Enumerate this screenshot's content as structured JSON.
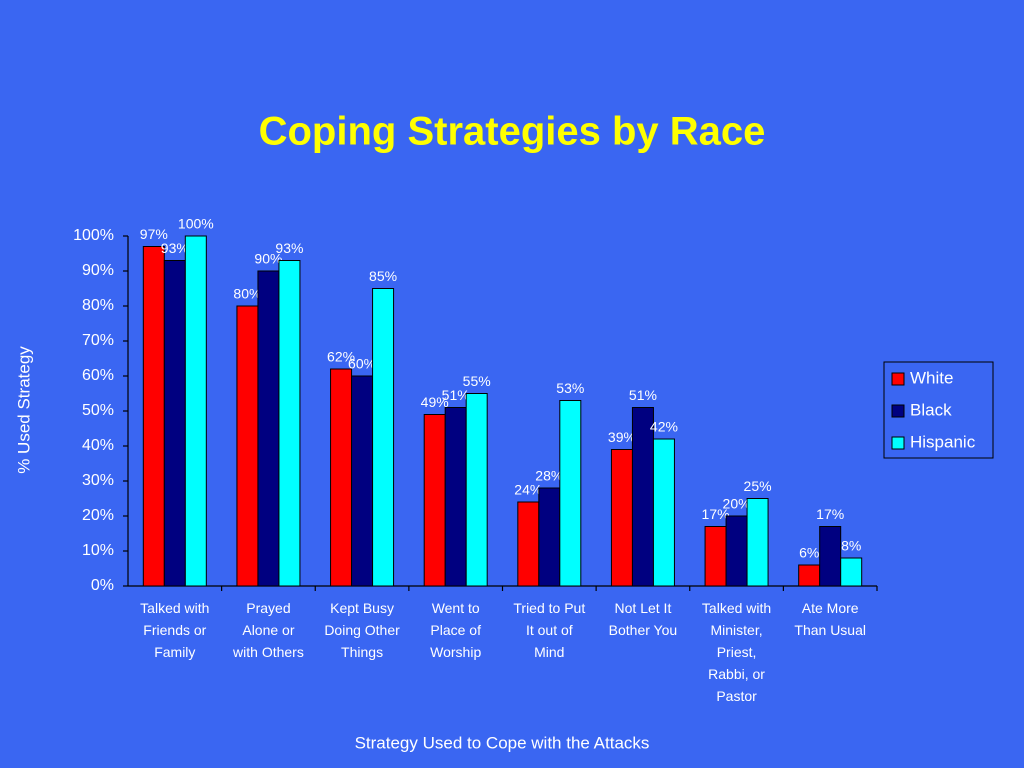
{
  "chart_data": {
    "type": "bar",
    "title": "Coping Strategies by Race",
    "x_label": "Strategy Used to Cope with the Attacks",
    "y_label": "% Used Strategy",
    "categories": [
      "Talked with\nFriends or\nFamily",
      "Prayed\nAlone or\nwith Others",
      "Kept Busy\nDoing Other\nThings",
      "Went to\nPlace of\nWorship",
      "Tried to Put\nIt out of\nMind",
      "Not Let It\nBother You",
      "Talked with\nMinister,\nPriest,\nRabbi, or\nPastor",
      "Ate More\nThan Usual"
    ],
    "series": [
      {
        "name": "White",
        "color": "#ff0000",
        "values": [
          97,
          80,
          62,
          49,
          24,
          39,
          17,
          6
        ],
        "value_labels": [
          "97%",
          "80%",
          "62%",
          "49%",
          "24%",
          "39%",
          "17%",
          "6%"
        ]
      },
      {
        "name": "Black",
        "color": "#000080",
        "values": [
          93,
          90,
          60,
          51,
          28,
          51,
          20,
          17
        ],
        "value_labels": [
          "93%",
          "90%",
          "60%",
          "51%",
          "28%",
          "51%",
          "20%",
          "17%"
        ]
      },
      {
        "name": "Hispanic",
        "color": "#00ffff",
        "values": [
          100,
          93,
          85,
          55,
          53,
          42,
          25,
          8
        ],
        "value_labels": [
          "100%",
          "93%",
          "85%",
          "55%",
          "53%",
          "42%",
          "25%",
          "8%"
        ]
      }
    ],
    "ylim": [
      0,
      100
    ],
    "yticks": [
      {
        "value": 0,
        "label": "0%"
      },
      {
        "value": 10,
        "label": "10%"
      },
      {
        "value": 20,
        "label": "20%"
      },
      {
        "value": 30,
        "label": "30%"
      },
      {
        "value": 40,
        "label": "40%"
      },
      {
        "value": 50,
        "label": "50%"
      },
      {
        "value": 60,
        "label": "60%"
      },
      {
        "value": 70,
        "label": "70%"
      },
      {
        "value": 80,
        "label": "80%"
      },
      {
        "value": 90,
        "label": "90%"
      },
      {
        "value": 100,
        "label": "100%"
      }
    ],
    "grid": false,
    "legend": "right"
  }
}
